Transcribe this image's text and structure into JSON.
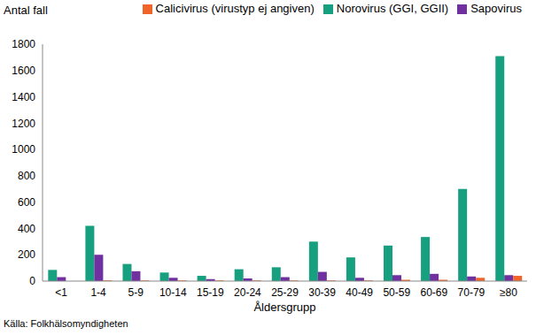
{
  "chart_data": {
    "type": "bar",
    "y_label": "Antal fall",
    "x_label": "Åldersgrupp",
    "source": "Källa: Folkhälsomyndigheten",
    "categories": [
      "<1",
      "1-4",
      "5-9",
      "10-14",
      "15-19",
      "20-24",
      "25-29",
      "30-39",
      "40-49",
      "50-59",
      "60-69",
      "70-79",
      "≥80"
    ],
    "series": [
      {
        "name": "Norovirus (GGI, GGII)",
        "color": "#17a07f",
        "values": [
          85,
          420,
          130,
          65,
          40,
          90,
          105,
          300,
          180,
          270,
          335,
          700,
          1710
        ]
      },
      {
        "name": "Sapovirus",
        "color": "#7030a0",
        "values": [
          30,
          200,
          75,
          25,
          15,
          20,
          30,
          70,
          25,
          45,
          55,
          35,
          45
        ]
      },
      {
        "name": "Calicivirus (virustyp ej angiven)",
        "color": "#f0642a",
        "values": [
          0,
          5,
          5,
          5,
          5,
          5,
          5,
          5,
          5,
          10,
          10,
          25,
          40
        ]
      }
    ],
    "ylim": [
      0,
      1800
    ],
    "yticks": [
      0,
      200,
      400,
      600,
      800,
      1000,
      1200,
      1400,
      1600,
      1800
    ],
    "grid": false,
    "legend": "top"
  }
}
